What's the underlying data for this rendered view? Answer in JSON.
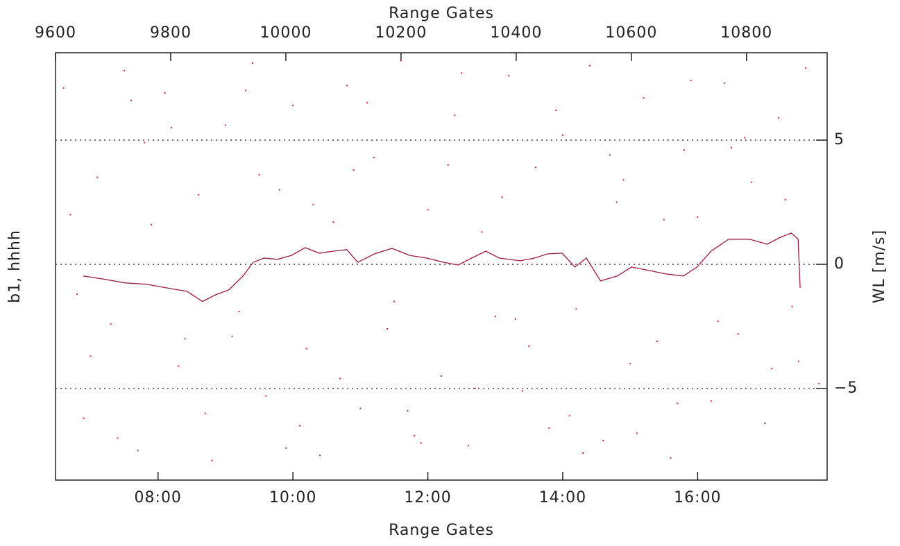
{
  "chart_data": {
    "type": "line",
    "title": "Range Gates",
    "xlabel": "Range Gates",
    "ylabel": "b1, hhhh",
    "y2label": "WL [m/s]",
    "xlim": [
      6.48,
      17.92
    ],
    "xticks": [
      {
        "value": 8,
        "label": "08:00"
      },
      {
        "value": 10,
        "label": "10:00"
      },
      {
        "value": 12,
        "label": "12:00"
      },
      {
        "value": 14,
        "label": "14:00"
      },
      {
        "value": 16,
        "label": "16:00"
      }
    ],
    "x2lim": [
      9600,
      10940
    ],
    "x2ticks": [
      9600,
      9800,
      10000,
      10200,
      10400,
      10600,
      10800
    ],
    "y2lim": [
      -8.69,
      8.52
    ],
    "y2ticks": [
      {
        "value": -5,
        "label": "−5"
      },
      0,
      5
    ],
    "grid": true,
    "series": [
      {
        "mode": "markers",
        "color": "#d0203c",
        "axis": "y2",
        "x": [
          6.6,
          6.9,
          7.1,
          7.3,
          7.5,
          7.7,
          7.9,
          8.1,
          8.3,
          8.6,
          8.8,
          9.0,
          9.2,
          9.4,
          9.6,
          9.8,
          10.0,
          10.2,
          10.4,
          10.6,
          10.8,
          11.0,
          11.2,
          11.4,
          11.6,
          11.8,
          12.0,
          12.2,
          12.4,
          12.6,
          12.8,
          13.0,
          13.2,
          13.4,
          13.6,
          13.8,
          14.0,
          14.2,
          14.4,
          14.6,
          14.8,
          15.0,
          15.2,
          15.4,
          15.6,
          15.8,
          16.0,
          16.2,
          16.4,
          16.6,
          16.8,
          17.0,
          17.2,
          17.4,
          17.6,
          17.8,
          6.7,
          7.0,
          7.4,
          7.8,
          8.2,
          8.7,
          9.1,
          9.5,
          9.9,
          10.3,
          10.7,
          11.1,
          11.5,
          11.9,
          12.3,
          12.7,
          13.1,
          13.5,
          13.9,
          14.3,
          14.7,
          15.1,
          15.5,
          15.9,
          16.3,
          16.7,
          17.1,
          17.5,
          6.8,
          7.6,
          8.4,
          9.3,
          10.1,
          10.9,
          11.7,
          12.5,
          13.3,
          14.1,
          14.9,
          15.7,
          16.5,
          17.3
        ],
        "values": [
          7.1,
          -6.2,
          3.5,
          -2.4,
          7.8,
          -7.5,
          1.6,
          6.9,
          -4.1,
          2.8,
          -7.9,
          5.6,
          -1.9,
          8.1,
          -5.3,
          3.0,
          6.4,
          -3.4,
          -7.7,
          1.7,
          7.2,
          -5.8,
          4.3,
          -2.6,
          8.2,
          -6.9,
          2.2,
          -4.5,
          6.0,
          -7.3,
          1.3,
          -2.1,
          7.6,
          -5.1,
          3.9,
          -6.6,
          5.2,
          -1.8,
          8.0,
          -7.1,
          2.5,
          -4.0,
          6.7,
          -3.1,
          -7.8,
          4.6,
          1.9,
          -5.5,
          7.3,
          -2.8,
          3.3,
          -6.4,
          5.9,
          -1.7,
          7.9,
          -4.8,
          2.0,
          -3.7,
          -7.0,
          4.9,
          5.5,
          -6.0,
          -2.9,
          3.6,
          -7.4,
          2.4,
          -4.6,
          6.5,
          -1.5,
          -7.2,
          4.0,
          -5.0,
          2.7,
          -3.3,
          6.2,
          -7.6,
          4.4,
          -6.8,
          1.8,
          7.4,
          -2.3,
          5.1,
          -4.2,
          -3.9,
          -1.2,
          6.6,
          -3.0,
          7.0,
          -6.5,
          3.8,
          -5.9,
          7.7,
          -2.2,
          -6.1,
          3.4,
          -5.6,
          4.7,
          2.6
        ]
      },
      {
        "mode": "line",
        "color": "#a01840",
        "axis": "y2",
        "x": [
          6.89,
          7.2,
          7.51,
          7.82,
          8.13,
          8.43,
          8.66,
          8.85,
          9.05,
          9.26,
          9.41,
          9.57,
          9.77,
          9.98,
          10.18,
          10.39,
          10.6,
          10.8,
          10.96,
          11.21,
          11.47,
          11.73,
          11.98,
          12.24,
          12.45,
          12.65,
          12.86,
          13.06,
          13.37,
          13.58,
          13.78,
          13.99,
          14.18,
          14.35,
          14.56,
          14.81,
          15.02,
          15.28,
          15.53,
          15.79,
          15.99,
          16.2,
          16.46,
          16.77,
          17.03,
          17.23,
          17.39,
          17.49,
          17.52
        ],
        "values": [
          -0.47,
          -0.6,
          -0.75,
          -0.8,
          -0.95,
          -1.09,
          -1.5,
          -1.23,
          -1.03,
          -0.47,
          0.08,
          0.25,
          0.2,
          0.36,
          0.67,
          0.45,
          0.53,
          0.59,
          0.08,
          0.42,
          0.64,
          0.36,
          0.25,
          0.08,
          -0.03,
          0.25,
          0.53,
          0.25,
          0.14,
          0.25,
          0.42,
          0.45,
          -0.11,
          0.25,
          -0.67,
          -0.47,
          -0.11,
          -0.25,
          -0.39,
          -0.47,
          -0.11,
          0.53,
          1.01,
          1.01,
          0.81,
          1.09,
          1.26,
          1.01,
          -0.95
        ]
      }
    ]
  }
}
